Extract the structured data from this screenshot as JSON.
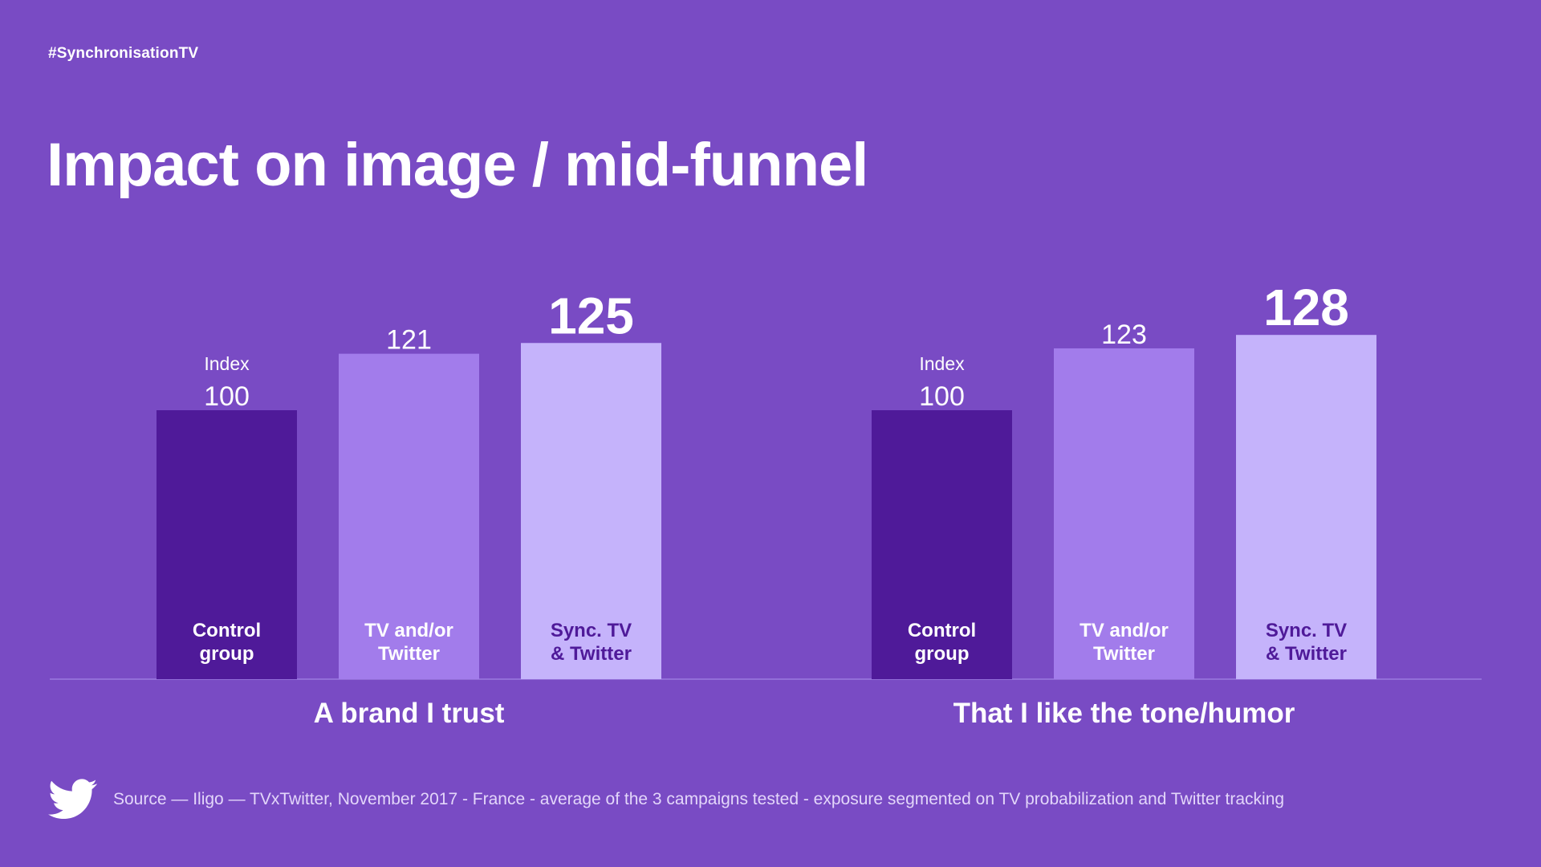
{
  "header": {
    "hashtag": "#SynchronisationTV",
    "title": "Impact on image / mid-funnel"
  },
  "colors": {
    "background": "#794BC4",
    "control": "#4F1A99",
    "tv_or_twitter": "#A27CEB",
    "sync": "#C5B3FB",
    "baseline": "#9B7BDF",
    "dark_label": "#4F1A99",
    "light_label": "#FFFFFF"
  },
  "chart_data": [
    {
      "type": "bar",
      "title": "A brand I trust",
      "categories": [
        "Control group",
        "TV and/or Twitter",
        "Sync. TV & Twitter"
      ],
      "category_lines": [
        [
          "Control",
          "group"
        ],
        [
          "TV and/or",
          "Twitter"
        ],
        [
          "Sync. TV",
          "& Twitter"
        ]
      ],
      "values": [
        100,
        121,
        125
      ],
      "value_labels": [
        "100",
        "121",
        "125"
      ],
      "value_prefix": [
        "Index",
        "",
        ""
      ],
      "ylim": [
        0,
        130
      ]
    },
    {
      "type": "bar",
      "title": "That I like the tone/humor",
      "categories": [
        "Control group",
        "TV and/or Twitter",
        "Sync. TV & Twitter"
      ],
      "category_lines": [
        [
          "Control",
          "group"
        ],
        [
          "TV and/or",
          "Twitter"
        ],
        [
          "Sync. TV",
          "& Twitter"
        ]
      ],
      "values": [
        100,
        123,
        128
      ],
      "value_labels": [
        "100",
        "123",
        "128"
      ],
      "value_prefix": [
        "Index",
        "",
        ""
      ],
      "ylim": [
        0,
        130
      ]
    }
  ],
  "footer": {
    "logo_icon": "twitter-bird-icon",
    "source": "Source — Iligo — TVxTwitter, November 2017 - France - average of the 3 campaigns tested - exposure segmented on TV probabilization and Twitter tracking"
  }
}
